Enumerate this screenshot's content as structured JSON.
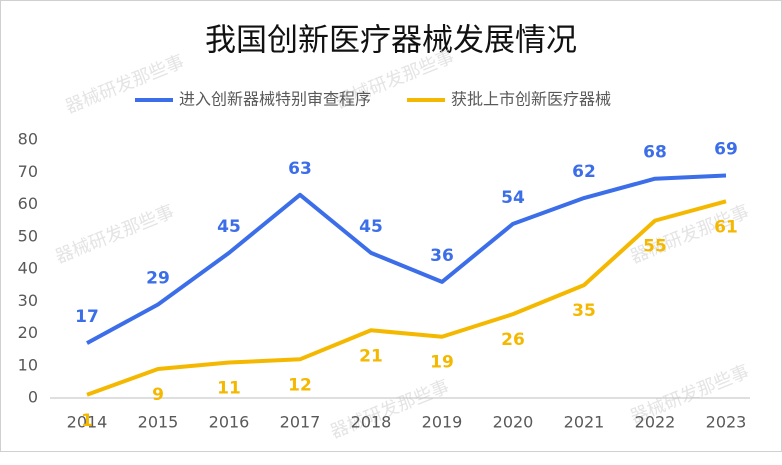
{
  "chart_data": {
    "type": "line",
    "title": "我国创新医疗器械发展情况",
    "watermark": "器械研发那些事",
    "categories": [
      "2014",
      "2015",
      "2016",
      "2017",
      "2018",
      "2019",
      "2020",
      "2021",
      "2022",
      "2023"
    ],
    "series": [
      {
        "name": "进入创新器械特别审查程序",
        "color": "#3b6ee8",
        "values": [
          17,
          29,
          45,
          63,
          45,
          36,
          54,
          62,
          68,
          69
        ]
      },
      {
        "name": "获批上市创新医疗器械",
        "color": "#f5b800",
        "values": [
          1,
          9,
          11,
          12,
          21,
          19,
          26,
          35,
          55,
          61
        ]
      }
    ],
    "ylim": [
      0,
      80
    ],
    "yticks": [
      0,
      10,
      20,
      30,
      40,
      50,
      60,
      70,
      80
    ],
    "legend": "top"
  }
}
